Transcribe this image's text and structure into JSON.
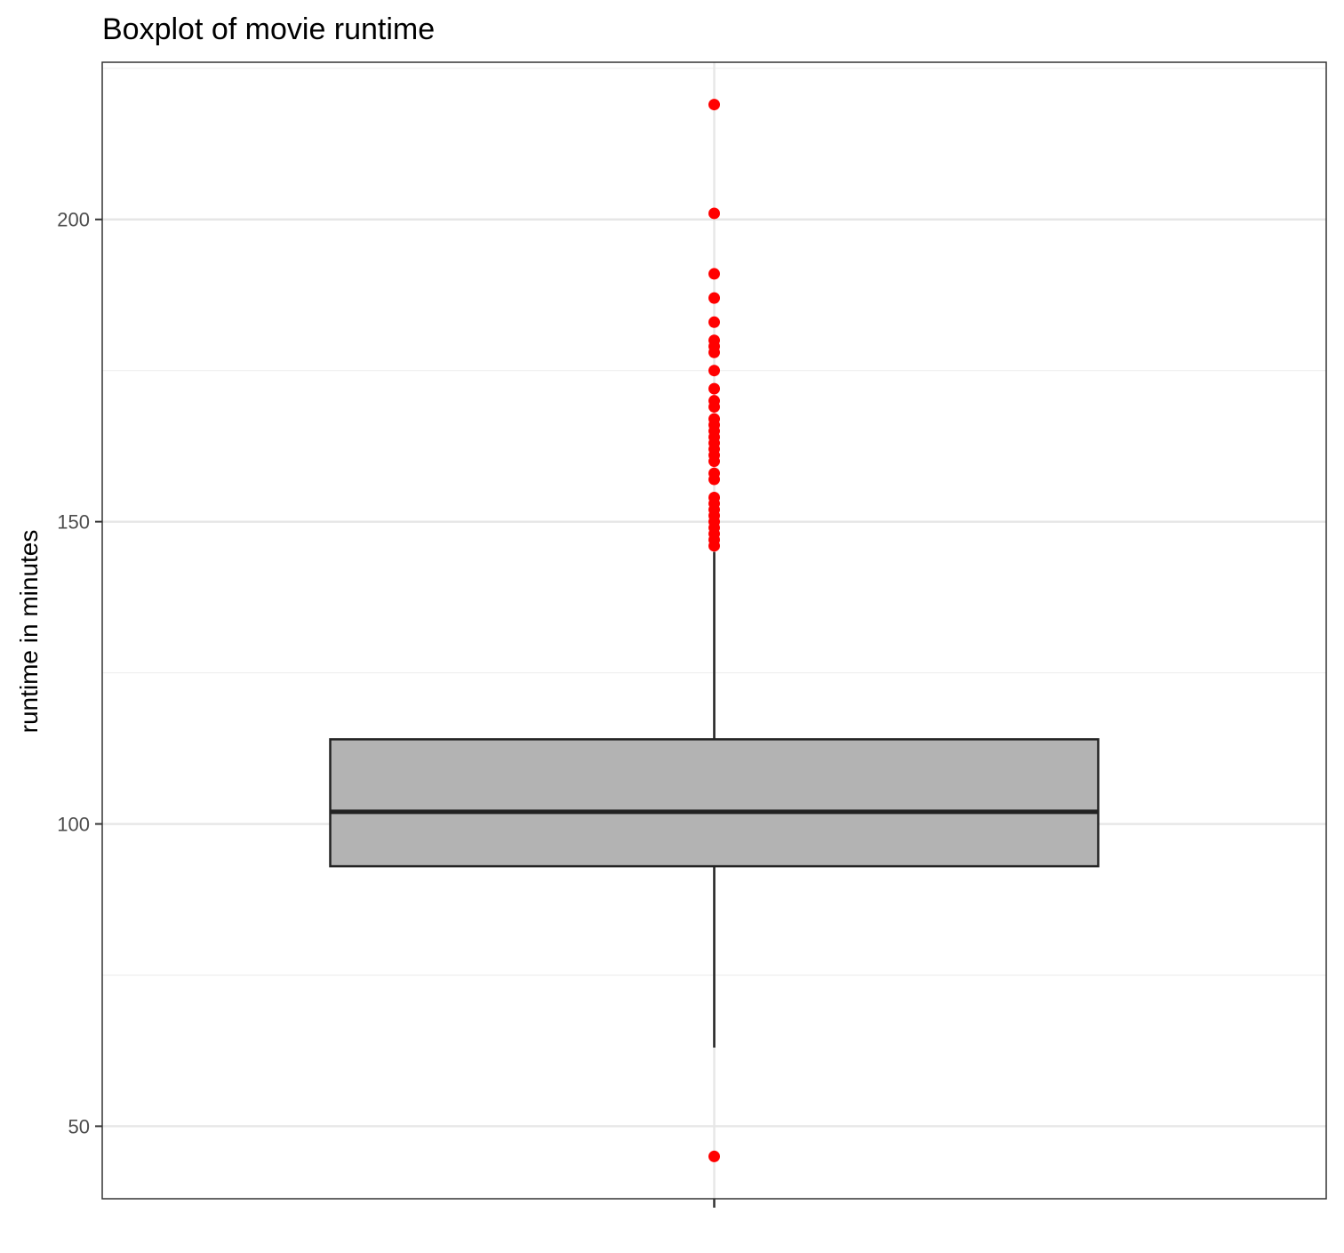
{
  "chart_data": {
    "type": "boxplot",
    "title": "Boxplot of movie runtime",
    "xlabel": "",
    "ylabel": "runtime in minutes",
    "ylim": [
      38,
      226
    ],
    "yticks": [
      50,
      100,
      150,
      200
    ],
    "ytick_labels": [
      "50",
      "100",
      "150",
      "200"
    ],
    "grid": true,
    "box": {
      "min_whisker": 63,
      "q1": 93,
      "median": 102,
      "q3": 114,
      "max_whisker": 145
    },
    "outliers": [
      45,
      146,
      147,
      148,
      149,
      150,
      151,
      152,
      153,
      154,
      157,
      158,
      160,
      161,
      162,
      163,
      164,
      165,
      166,
      167,
      169,
      170,
      172,
      175,
      178,
      179,
      180,
      183,
      187,
      191,
      201,
      219
    ],
    "colors": {
      "box_fill": "#b3b3b3",
      "box_stroke": "#222222",
      "outlier": "#ff0000",
      "grid_major": "#e6e6e6",
      "grid_minor": "#efefef",
      "panel_border": "#333333"
    }
  }
}
